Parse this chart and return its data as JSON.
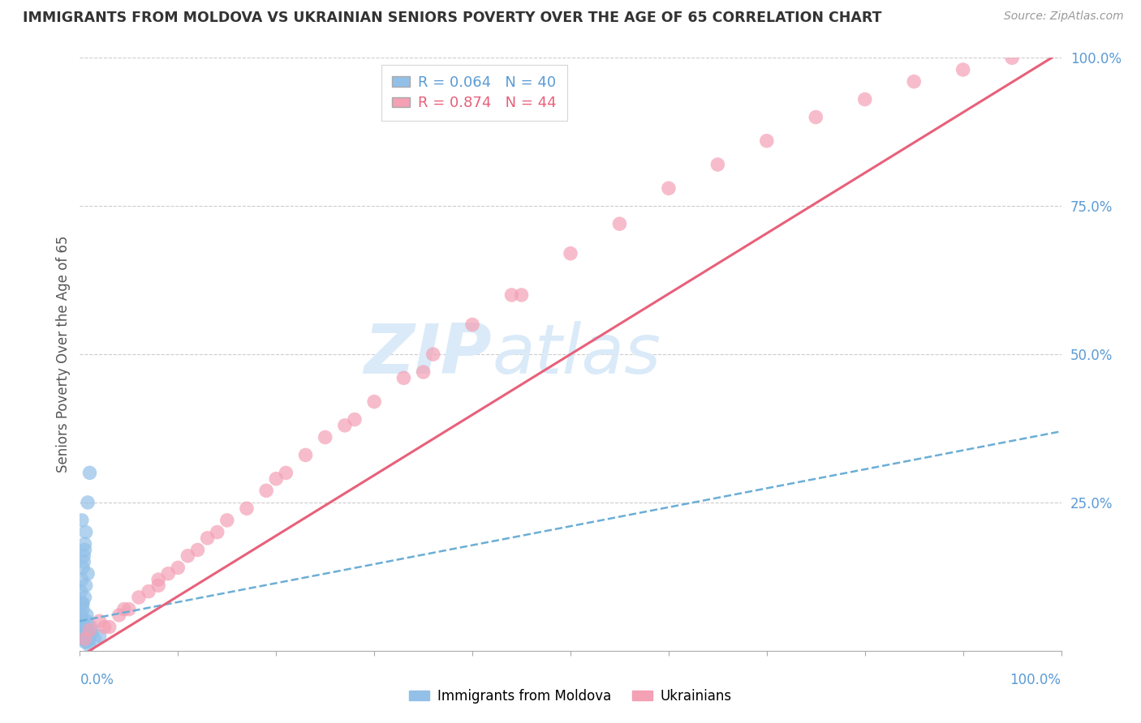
{
  "title": "IMMIGRANTS FROM MOLDOVA VS UKRAINIAN SENIORS POVERTY OVER THE AGE OF 65 CORRELATION CHART",
  "source": "Source: ZipAtlas.com",
  "ylabel": "Seniors Poverty Over the Age of 65",
  "legend_blue_r": "R = 0.064",
  "legend_blue_n": "N = 40",
  "legend_pink_r": "R = 0.874",
  "legend_pink_n": "N = 44",
  "legend_label_blue": "Immigrants from Moldova",
  "legend_label_pink": "Ukrainians",
  "blue_color": "#92C0E8",
  "pink_color": "#F4A0B5",
  "blue_line_color": "#6BAED6",
  "pink_line_color": "#E8607A",
  "watermark_zip": "ZIP",
  "watermark_atlas": "atlas",
  "watermark_color": "#DAEAF8",
  "bg_color": "#FFFFFF",
  "grid_color": "#CCCCCC",
  "blue_scatter_x": [
    0.1,
    0.2,
    0.3,
    0.4,
    0.5,
    0.6,
    0.7,
    0.8,
    0.9,
    1.0,
    0.15,
    0.25,
    0.35,
    0.45,
    0.55,
    0.65,
    0.75,
    0.85,
    0.95,
    1.1,
    0.1,
    0.2,
    0.3,
    0.5,
    0.7,
    1.2,
    1.5,
    2.0,
    0.4,
    0.6,
    0.8,
    1.0,
    0.3,
    0.5,
    0.2,
    0.4,
    0.6,
    0.8,
    0.3,
    0.5
  ],
  "blue_scatter_y": [
    2.0,
    3.0,
    4.0,
    2.5,
    1.5,
    3.5,
    5.0,
    2.0,
    1.0,
    2.5,
    6.0,
    8.0,
    5.0,
    3.0,
    4.0,
    2.0,
    1.5,
    3.0,
    2.0,
    4.0,
    10.0,
    12.0,
    7.0,
    9.0,
    6.0,
    3.0,
    2.0,
    2.5,
    16.0,
    20.0,
    25.0,
    30.0,
    14.0,
    18.0,
    22.0,
    15.0,
    11.0,
    13.0,
    8.0,
    17.0
  ],
  "pink_scatter_x": [
    0.5,
    1.0,
    2.0,
    3.0,
    4.0,
    5.0,
    6.0,
    7.0,
    8.0,
    9.0,
    10.0,
    11.0,
    12.0,
    13.0,
    15.0,
    17.0,
    19.0,
    21.0,
    23.0,
    25.0,
    27.0,
    30.0,
    33.0,
    36.0,
    40.0,
    44.0,
    50.0,
    55.0,
    60.0,
    65.0,
    70.0,
    75.0,
    80.0,
    85.0,
    90.0,
    95.0,
    2.5,
    4.5,
    8.0,
    14.0,
    20.0,
    28.0,
    35.0,
    45.0
  ],
  "pink_scatter_y": [
    2.0,
    3.5,
    5.0,
    4.0,
    6.0,
    7.0,
    9.0,
    10.0,
    12.0,
    13.0,
    14.0,
    16.0,
    17.0,
    19.0,
    22.0,
    24.0,
    27.0,
    30.0,
    33.0,
    36.0,
    38.0,
    42.0,
    46.0,
    50.0,
    55.0,
    60.0,
    67.0,
    72.0,
    78.0,
    82.0,
    86.0,
    90.0,
    93.0,
    96.0,
    98.0,
    100.0,
    4.0,
    7.0,
    11.0,
    20.0,
    29.0,
    39.0,
    47.0,
    60.0
  ],
  "blue_line_x": [
    0,
    100
  ],
  "blue_line_y": [
    5.0,
    37.0
  ],
  "pink_line_x": [
    0,
    100
  ],
  "pink_line_y": [
    -1.0,
    101.0
  ],
  "xlim": [
    0,
    100
  ],
  "ylim": [
    0,
    100
  ],
  "yticks": [
    25,
    50,
    75,
    100
  ],
  "ytick_labels": [
    "25.0%",
    "50.0%",
    "75.0%",
    "100.0%"
  ]
}
